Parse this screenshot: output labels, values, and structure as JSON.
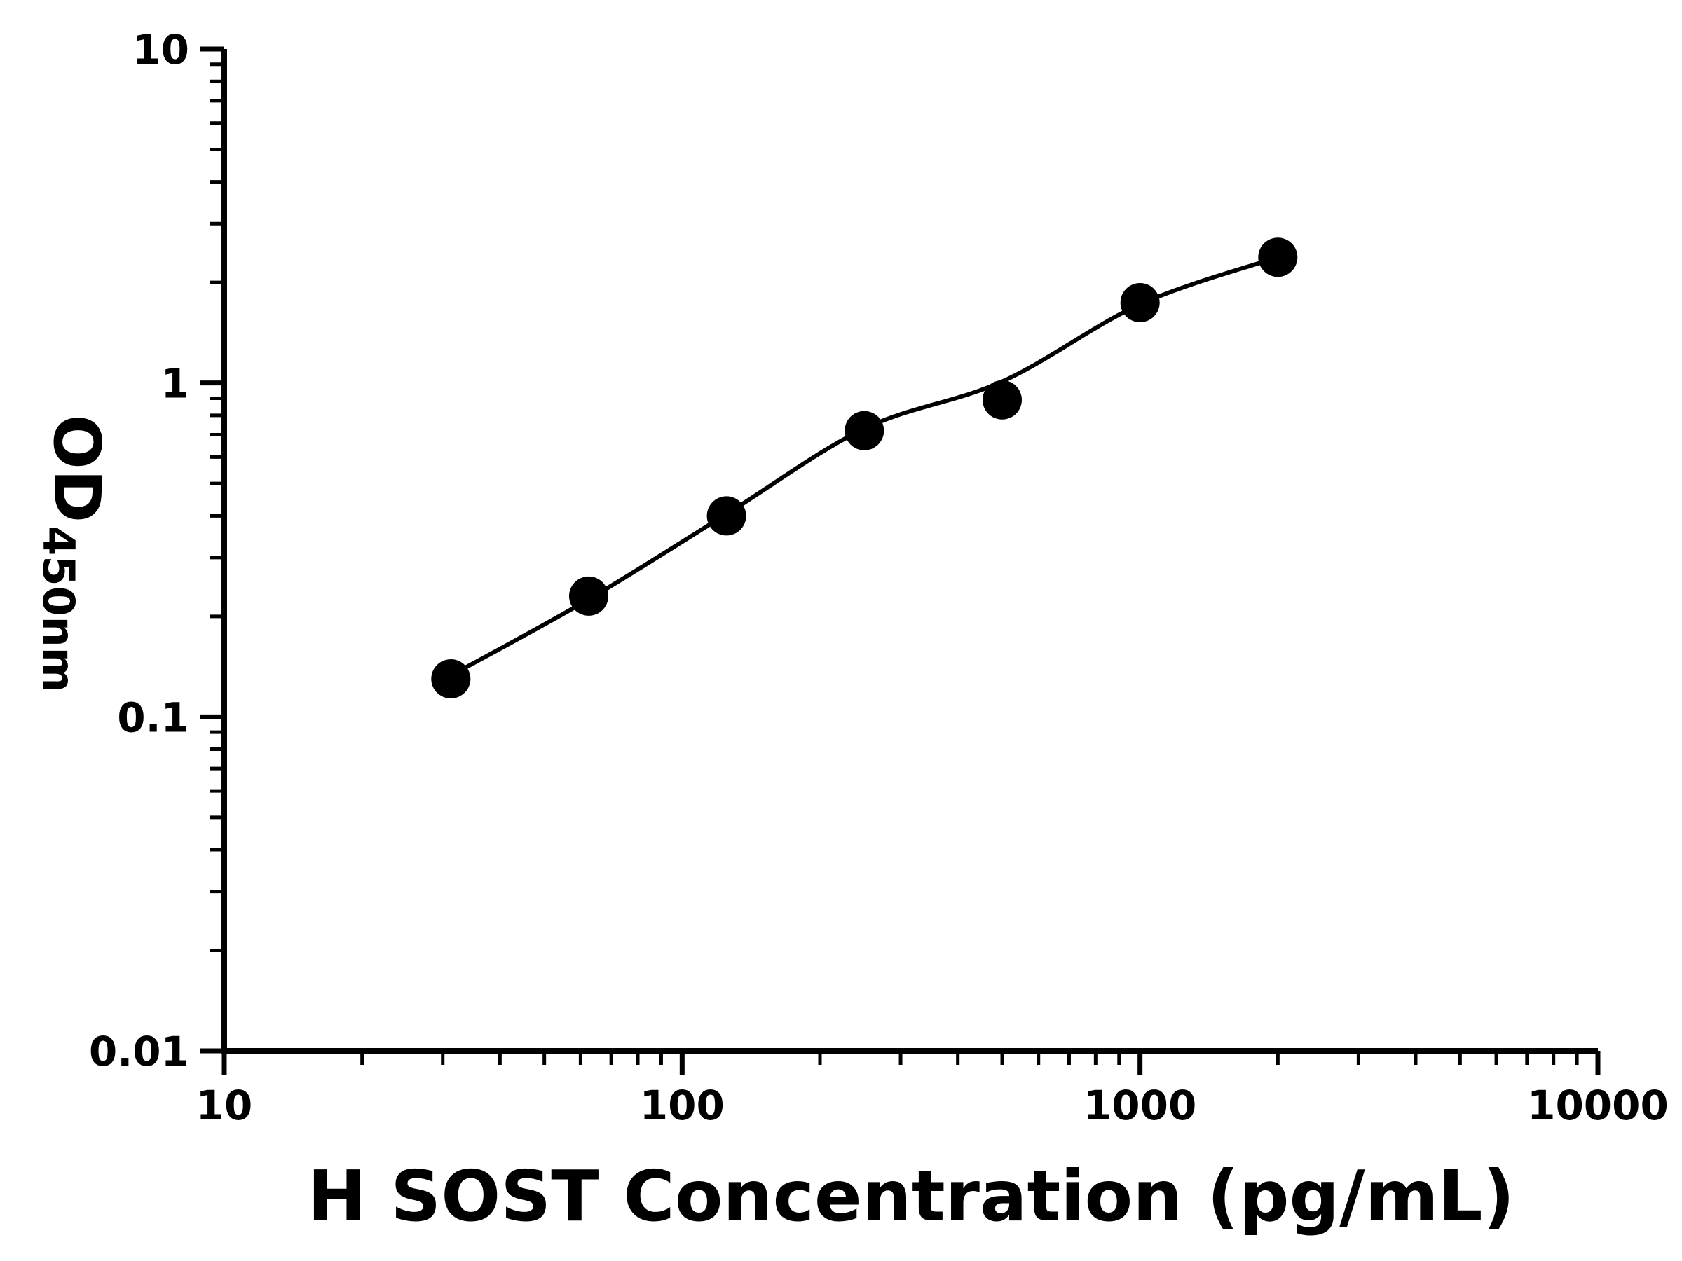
{
  "figure": {
    "background": "#ffffff",
    "ink": "#000000"
  },
  "chart_data": {
    "type": "scatter",
    "title": "",
    "xlabel": "H SOST Concentration (pg/mL)",
    "ylabel_main": "OD",
    "ylabel_sub": "450nm",
    "x_scale": "log",
    "y_scale": "log",
    "xlim": [
      10,
      10000
    ],
    "ylim": [
      0.01,
      10
    ],
    "x_ticks": [
      10,
      100,
      1000,
      10000
    ],
    "x_tick_labels": [
      "10",
      "100",
      "1000",
      "10000"
    ],
    "y_ticks": [
      0.01,
      0.1,
      1,
      10
    ],
    "y_tick_labels": [
      "0.01",
      "0.1",
      "1",
      "10"
    ],
    "grid": false,
    "legend": null,
    "marker": {
      "shape": "circle",
      "color": "#000000",
      "radius_px": 28
    },
    "line_color": "#000000",
    "points": {
      "x": [
        31.25,
        62.5,
        125,
        250,
        500,
        1000,
        2000
      ],
      "y": [
        0.13,
        0.23,
        0.4,
        0.72,
        0.89,
        1.74,
        2.38
      ]
    },
    "fit_curve": {
      "x": [
        31.25,
        62.5,
        125,
        250,
        500,
        1000,
        2000
      ],
      "y": [
        0.133,
        0.225,
        0.405,
        0.73,
        1.01,
        1.72,
        2.38
      ]
    }
  }
}
